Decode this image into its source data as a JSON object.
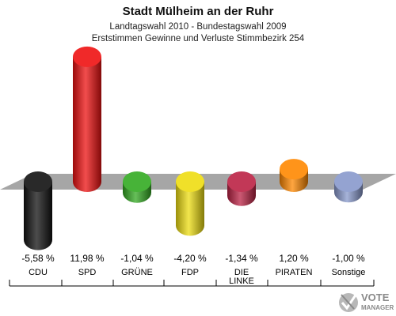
{
  "chart_data": {
    "type": "bar",
    "title": "Stadt Mülheim an der Ruhr",
    "subtitle_lines": [
      "Landtagswahl 2010 - Bundestagswahl 2009",
      "Erststimmen Gewinne und Verluste Stimmbezirk 254"
    ],
    "categories": [
      "CDU",
      "SPD",
      "GRÜNE",
      "FDP",
      "DIE LINKE",
      "PIRATEN",
      "Sonstige"
    ],
    "category_lines": [
      [
        "CDU"
      ],
      [
        "SPD"
      ],
      [
        "GRÜNE"
      ],
      [
        "FDP"
      ],
      [
        "DIE",
        "LINKE"
      ],
      [
        "PIRATEN"
      ],
      [
        "Sonstige"
      ]
    ],
    "values": [
      -5.58,
      11.98,
      -1.04,
      -4.2,
      -1.34,
      1.2,
      -1.0
    ],
    "value_labels": [
      "-5,58 %",
      "11,98 %",
      "-1,04 %",
      "-4,20 %",
      "-1,34 %",
      "1,20 %",
      "-1,00 %"
    ],
    "colors": [
      "#111111",
      "#ee1111",
      "#33aa22",
      "#eedd11",
      "#bb2244",
      "#ff8800",
      "#8899cc"
    ],
    "xlabel": "",
    "ylabel": "",
    "grid": false,
    "legend": "none"
  },
  "logo": {
    "line1": "VOTE",
    "line2": "MANAGER",
    "icon": "checkmark-cross-icon"
  }
}
